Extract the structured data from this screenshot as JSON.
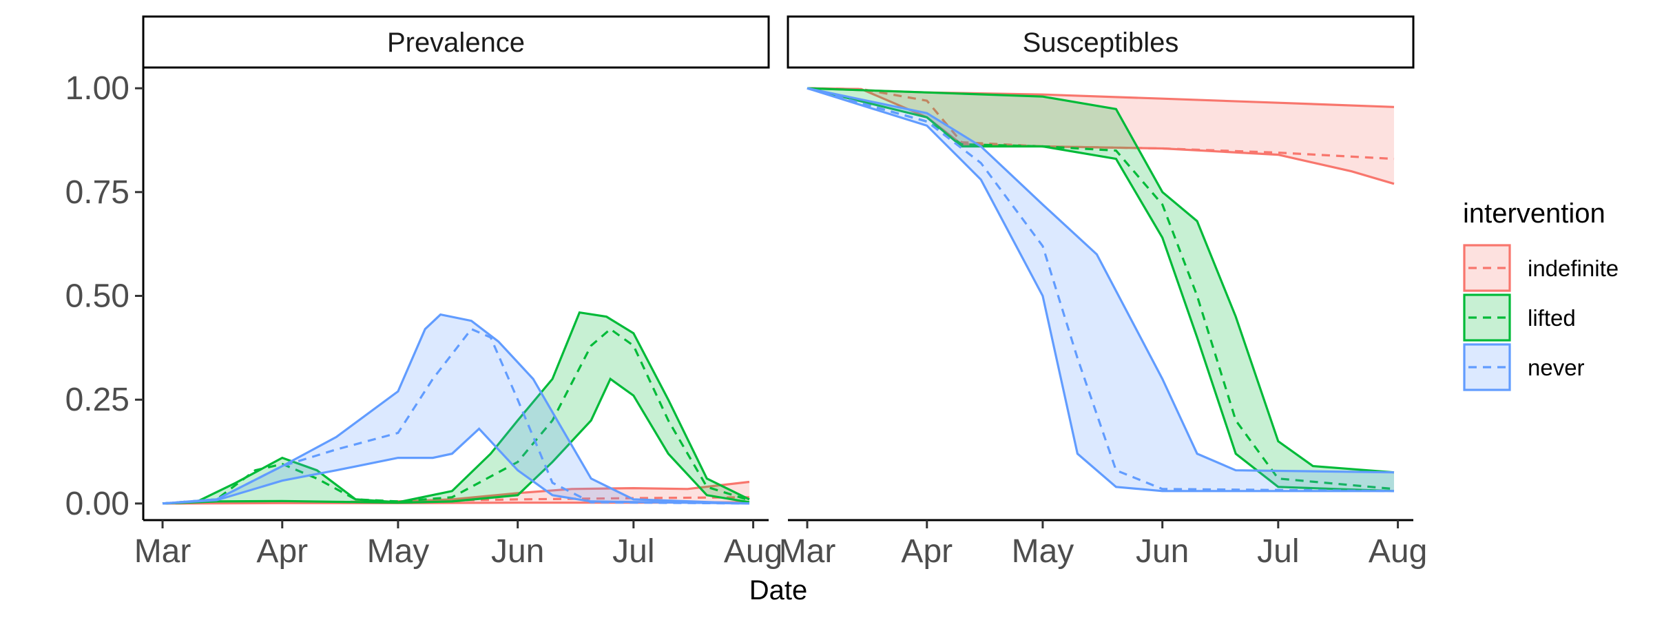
{
  "chart_data": [
    {
      "type": "area",
      "title": "Prevalence",
      "xlabel": "Date",
      "ylabel": "",
      "x_ticks": [
        "Mar",
        "Apr",
        "May",
        "Jun",
        "Jul",
        "Aug"
      ],
      "y_ticks": [
        "0.00",
        "0.25",
        "0.50",
        "0.75",
        "1.00"
      ],
      "xlim": [
        "2020-02-25",
        "2020-08-05"
      ],
      "ylim": [
        -0.04,
        1.05
      ],
      "grid": false,
      "series": [
        {
          "name": "indefinite",
          "color": "#F8766D",
          "median": [
            [
              "2020-03-01",
              0
            ],
            [
              "2020-04-01",
              0.003
            ],
            [
              "2020-05-01",
              0.005
            ],
            [
              "2020-06-01",
              0.01
            ],
            [
              "2020-07-01",
              0.013
            ],
            [
              "2020-07-31",
              0.015
            ]
          ],
          "lower": [
            [
              "2020-03-01",
              0
            ],
            [
              "2020-04-01",
              0.001
            ],
            [
              "2020-05-01",
              0.001
            ],
            [
              "2020-06-01",
              0.002
            ],
            [
              "2020-07-01",
              0.002
            ],
            [
              "2020-07-31",
              0.003
            ]
          ],
          "upper": [
            [
              "2020-03-01",
              0
            ],
            [
              "2020-04-01",
              0.004
            ],
            [
              "2020-04-15",
              0.003
            ],
            [
              "2020-05-01",
              0.005
            ],
            [
              "2020-05-15",
              0.01
            ],
            [
              "2020-06-01",
              0.025
            ],
            [
              "2020-06-15",
              0.035
            ],
            [
              "2020-07-01",
              0.037
            ],
            [
              "2020-07-15",
              0.035
            ],
            [
              "2020-07-31",
              0.052
            ]
          ]
        },
        {
          "name": "lifted",
          "color": "#00BA38",
          "median": [
            [
              "2020-03-01",
              0
            ],
            [
              "2020-03-15",
              0.01
            ],
            [
              "2020-03-25",
              0.08
            ],
            [
              "2020-04-01",
              0.095
            ],
            [
              "2020-04-10",
              0.06
            ],
            [
              "2020-04-20",
              0.01
            ],
            [
              "2020-05-01",
              0.005
            ],
            [
              "2020-05-15",
              0.015
            ],
            [
              "2020-06-01",
              0.1
            ],
            [
              "2020-06-10",
              0.2
            ],
            [
              "2020-06-20",
              0.38
            ],
            [
              "2020-06-25",
              0.42
            ],
            [
              "2020-07-01",
              0.38
            ],
            [
              "2020-07-10",
              0.2
            ],
            [
              "2020-07-20",
              0.04
            ],
            [
              "2020-07-31",
              0.008
            ]
          ],
          "lower": [
            [
              "2020-03-01",
              0
            ],
            [
              "2020-03-15",
              0.005
            ],
            [
              "2020-04-01",
              0.006
            ],
            [
              "2020-05-01",
              0.002
            ],
            [
              "2020-05-15",
              0.005
            ],
            [
              "2020-06-01",
              0.02
            ],
            [
              "2020-06-10",
              0.1
            ],
            [
              "2020-06-20",
              0.2
            ],
            [
              "2020-06-25",
              0.3
            ],
            [
              "2020-07-01",
              0.26
            ],
            [
              "2020-07-10",
              0.12
            ],
            [
              "2020-07-20",
              0.02
            ],
            [
              "2020-07-31",
              0.003
            ]
          ],
          "upper": [
            [
              "2020-03-01",
              0
            ],
            [
              "2020-03-10",
              0.005
            ],
            [
              "2020-03-20",
              0.05
            ],
            [
              "2020-04-01",
              0.11
            ],
            [
              "2020-04-10",
              0.08
            ],
            [
              "2020-04-20",
              0.01
            ],
            [
              "2020-05-01",
              0.003
            ],
            [
              "2020-05-15",
              0.03
            ],
            [
              "2020-05-25",
              0.12
            ],
            [
              "2020-06-01",
              0.2
            ],
            [
              "2020-06-10",
              0.3
            ],
            [
              "2020-06-17",
              0.46
            ],
            [
              "2020-06-24",
              0.45
            ],
            [
              "2020-07-01",
              0.41
            ],
            [
              "2020-07-10",
              0.25
            ],
            [
              "2020-07-20",
              0.06
            ],
            [
              "2020-07-31",
              0.01
            ]
          ]
        },
        {
          "name": "never",
          "color": "#619CFF",
          "median": [
            [
              "2020-03-01",
              0
            ],
            [
              "2020-03-15",
              0.01
            ],
            [
              "2020-04-01",
              0.09
            ],
            [
              "2020-04-15",
              0.13
            ],
            [
              "2020-05-01",
              0.17
            ],
            [
              "2020-05-10",
              0.3
            ],
            [
              "2020-05-20",
              0.42
            ],
            [
              "2020-05-25",
              0.4
            ],
            [
              "2020-06-01",
              0.25
            ],
            [
              "2020-06-10",
              0.05
            ],
            [
              "2020-06-20",
              0.003
            ],
            [
              "2020-07-31",
              0
            ]
          ],
          "lower": [
            [
              "2020-03-01",
              0
            ],
            [
              "2020-03-15",
              0.008
            ],
            [
              "2020-04-01",
              0.055
            ],
            [
              "2020-04-15",
              0.08
            ],
            [
              "2020-05-01",
              0.11
            ],
            [
              "2020-05-10",
              0.11
            ],
            [
              "2020-05-15",
              0.12
            ],
            [
              "2020-05-22",
              0.18
            ],
            [
              "2020-06-01",
              0.08
            ],
            [
              "2020-06-10",
              0.02
            ],
            [
              "2020-06-20",
              0.005
            ],
            [
              "2020-07-31",
              0
            ]
          ],
          "upper": [
            [
              "2020-03-01",
              0
            ],
            [
              "2020-03-15",
              0.01
            ],
            [
              "2020-04-01",
              0.09
            ],
            [
              "2020-04-15",
              0.16
            ],
            [
              "2020-05-01",
              0.27
            ],
            [
              "2020-05-08",
              0.42
            ],
            [
              "2020-05-12",
              0.455
            ],
            [
              "2020-05-20",
              0.44
            ],
            [
              "2020-05-27",
              0.39
            ],
            [
              "2020-06-05",
              0.3
            ],
            [
              "2020-06-10",
              0.22
            ],
            [
              "2020-06-20",
              0.06
            ],
            [
              "2020-07-01",
              0.01
            ],
            [
              "2020-07-31",
              0
            ]
          ]
        }
      ]
    },
    {
      "type": "area",
      "title": "Susceptibles",
      "xlabel": "Date",
      "ylabel": "",
      "x_ticks": [
        "Mar",
        "Apr",
        "May",
        "Jun",
        "Jul",
        "Aug"
      ],
      "y_ticks": [
        "0.00",
        "0.25",
        "0.50",
        "0.75",
        "1.00"
      ],
      "xlim": [
        "2020-02-25",
        "2020-08-05"
      ],
      "ylim": [
        -0.04,
        1.05
      ],
      "grid": false,
      "series": [
        {
          "name": "indefinite",
          "color": "#F8766D",
          "median": [
            [
              "2020-03-01",
              1.0
            ],
            [
              "2020-03-15",
              0.998
            ],
            [
              "2020-04-01",
              0.97
            ],
            [
              "2020-04-10",
              0.87
            ],
            [
              "2020-05-01",
              0.86
            ],
            [
              "2020-06-01",
              0.855
            ],
            [
              "2020-07-01",
              0.845
            ],
            [
              "2020-07-31",
              0.83
            ]
          ],
          "lower": [
            [
              "2020-03-01",
              1.0
            ],
            [
              "2020-03-15",
              0.998
            ],
            [
              "2020-04-01",
              0.93
            ],
            [
              "2020-04-10",
              0.865
            ],
            [
              "2020-05-01",
              0.86
            ],
            [
              "2020-06-01",
              0.855
            ],
            [
              "2020-07-01",
              0.84
            ],
            [
              "2020-07-20",
              0.8
            ],
            [
              "2020-07-31",
              0.77
            ]
          ],
          "upper": [
            [
              "2020-03-01",
              1.0
            ],
            [
              "2020-04-01",
              0.99
            ],
            [
              "2020-05-01",
              0.985
            ],
            [
              "2020-06-01",
              0.975
            ],
            [
              "2020-07-01",
              0.965
            ],
            [
              "2020-07-31",
              0.955
            ]
          ]
        },
        {
          "name": "lifted",
          "color": "#00BA38",
          "median": [
            [
              "2020-03-01",
              1.0
            ],
            [
              "2020-04-01",
              0.92
            ],
            [
              "2020-04-10",
              0.865
            ],
            [
              "2020-05-01",
              0.86
            ],
            [
              "2020-05-20",
              0.85
            ],
            [
              "2020-06-01",
              0.72
            ],
            [
              "2020-06-10",
              0.5
            ],
            [
              "2020-06-20",
              0.2
            ],
            [
              "2020-07-01",
              0.06
            ],
            [
              "2020-07-31",
              0.035
            ]
          ],
          "lower": [
            [
              "2020-03-01",
              1.0
            ],
            [
              "2020-04-01",
              0.93
            ],
            [
              "2020-04-10",
              0.86
            ],
            [
              "2020-05-01",
              0.86
            ],
            [
              "2020-05-20",
              0.83
            ],
            [
              "2020-06-01",
              0.64
            ],
            [
              "2020-06-10",
              0.4
            ],
            [
              "2020-06-20",
              0.12
            ],
            [
              "2020-07-01",
              0.04
            ],
            [
              "2020-07-31",
              0.03
            ]
          ],
          "upper": [
            [
              "2020-03-01",
              1.0
            ],
            [
              "2020-04-01",
              0.99
            ],
            [
              "2020-05-01",
              0.98
            ],
            [
              "2020-05-20",
              0.95
            ],
            [
              "2020-06-01",
              0.75
            ],
            [
              "2020-06-10",
              0.68
            ],
            [
              "2020-06-20",
              0.45
            ],
            [
              "2020-07-01",
              0.15
            ],
            [
              "2020-07-10",
              0.09
            ],
            [
              "2020-07-31",
              0.075
            ]
          ]
        },
        {
          "name": "never",
          "color": "#619CFF",
          "median": [
            [
              "2020-03-01",
              1.0
            ],
            [
              "2020-04-01",
              0.92
            ],
            [
              "2020-04-15",
              0.82
            ],
            [
              "2020-05-01",
              0.62
            ],
            [
              "2020-05-10",
              0.35
            ],
            [
              "2020-05-20",
              0.08
            ],
            [
              "2020-06-01",
              0.035
            ],
            [
              "2020-07-31",
              0.03
            ]
          ],
          "lower": [
            [
              "2020-03-01",
              1.0
            ],
            [
              "2020-04-01",
              0.91
            ],
            [
              "2020-04-15",
              0.78
            ],
            [
              "2020-05-01",
              0.5
            ],
            [
              "2020-05-10",
              0.12
            ],
            [
              "2020-05-20",
              0.04
            ],
            [
              "2020-06-01",
              0.03
            ],
            [
              "2020-07-31",
              0.03
            ]
          ],
          "upper": [
            [
              "2020-03-01",
              1.0
            ],
            [
              "2020-04-01",
              0.94
            ],
            [
              "2020-04-15",
              0.86
            ],
            [
              "2020-05-01",
              0.72
            ],
            [
              "2020-05-15",
              0.6
            ],
            [
              "2020-06-01",
              0.3
            ],
            [
              "2020-06-10",
              0.12
            ],
            [
              "2020-06-20",
              0.08
            ],
            [
              "2020-07-31",
              0.075
            ]
          ]
        }
      ]
    }
  ],
  "legend": {
    "title": "intervention",
    "placement": "right",
    "items": [
      {
        "label": "indefinite",
        "color": "#F8766D"
      },
      {
        "label": "lifted",
        "color": "#00BA38"
      },
      {
        "label": "never",
        "color": "#619CFF"
      }
    ]
  },
  "x_axis_title": "Date"
}
